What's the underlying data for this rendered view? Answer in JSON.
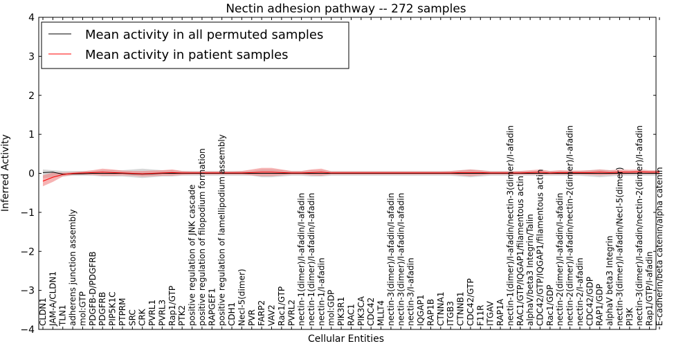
{
  "chart_data": {
    "type": "line",
    "title": "Nectin adhesion pathway -- 272 samples",
    "xlabel": "Cellular Entities",
    "ylabel": "Inferred Activity",
    "ylim": [
      -4,
      4
    ],
    "yticks": [
      -4,
      -3,
      -2,
      -1,
      0,
      1,
      2,
      3,
      4
    ],
    "ytick_labels": [
      "−4",
      "−3",
      "−2",
      "−1",
      "0",
      "1",
      "2",
      "3",
      "4"
    ],
    "grid": false,
    "legend_position": "top-left",
    "categories": [
      "CLDN1",
      "JAM-A/CLDN1",
      "TLN1",
      "adherens junction assembly",
      "mol:GTP",
      "PDGFB-D/PDGFRB",
      "PDGFRB",
      "PIP5K1C",
      "PTPRM",
      "SRC",
      "CRK",
      "PVRL1",
      "PVRL3",
      "Rap1/GTP",
      "PTK2",
      "positive regulation of JNK cascade",
      "positive regulation of filopodium formation",
      "RAPGEF1",
      "positive regulation of lamellipodium assembly",
      "CDH1",
      "Necl-5(dimer)",
      "PVR",
      "FARP2",
      "VAV2",
      "Rac1/GTP",
      "PVRL2",
      "nectin-1(dimer)/I-afadin/I-afadin",
      "nectin-1(dimer)/I-afadin/I-afadin",
      "nectin-1/I-afadin",
      "mol:GDP",
      "PIK3R1",
      "RAC1",
      "PIK3CA",
      "CDC42",
      "MLLT4",
      "nectin-3(dimer)/I-afadin/I-afadin",
      "nectin-3(dimer)/I-afadin/I-afadin",
      "nectin-3/I-afadin",
      "IQGAP1",
      "RAP1B",
      "CTNNA1",
      "ITGB3",
      "CTNNB1",
      "CDC42/GTP",
      "F11R",
      "ITGAV",
      "RAP1A",
      "nectin-1(dimer)/I-afadin/nectin-3(dimer)/I-afadin",
      "RAC1/GTP/IQGAP1/filamentous actin",
      "alphaV/beta3 Integrin/Talin",
      "CDC42/GTP/IQGAP1/filamentous actin",
      "Rac1/GDP",
      "nectin-2(dimer)/I-afadin/I-afadin",
      "nectin-2(dimer)/I-afadin/nectin-2(dimer)/I-afadin",
      "nectin-2/I-afadin",
      "CDC42/GDP",
      "RAP1/GDP",
      "alphaV beta3 Integrin",
      "nectin-3(dimer)/I-afadin/Necl-5(dimer)",
      "PI3K",
      "nectin-3(dimer)/I-afadin/nectin-2(dimer)/I-afadin",
      "Rap1/GTP/I-afadin",
      "E-cadherin/beta catenin/alpha catenin"
    ],
    "series": [
      {
        "name": "Mean activity in all permuted samples",
        "color": "#000000",
        "band_color": "#b0b0b0",
        "values": [
          0.02,
          0.03,
          -0.02,
          -0.01,
          -0.01,
          0,
          0,
          0,
          0,
          -0.01,
          -0.02,
          -0.01,
          0,
          0,
          0,
          0,
          0,
          0,
          0,
          0,
          0,
          0,
          0,
          0,
          0,
          0,
          0,
          0,
          0,
          0,
          0,
          0,
          0,
          0,
          0,
          0,
          0,
          0,
          0,
          0,
          0,
          0,
          0,
          0,
          0,
          0,
          0,
          0,
          0,
          0,
          0,
          0,
          0,
          0,
          0,
          0,
          0,
          0,
          0,
          0,
          0,
          0,
          0
        ],
        "band_lower": [
          -0.12,
          -0.1,
          -0.08,
          -0.06,
          -0.06,
          -0.06,
          -0.08,
          -0.08,
          -0.08,
          -0.1,
          -0.12,
          -0.1,
          -0.08,
          -0.08,
          -0.06,
          -0.06,
          -0.06,
          -0.06,
          -0.06,
          -0.06,
          -0.06,
          -0.06,
          -0.1,
          -0.1,
          -0.08,
          -0.06,
          -0.06,
          -0.08,
          -0.08,
          -0.06,
          -0.06,
          -0.06,
          -0.06,
          -0.06,
          -0.06,
          -0.06,
          -0.06,
          -0.06,
          -0.06,
          -0.06,
          -0.06,
          -0.06,
          -0.08,
          -0.1,
          -0.08,
          -0.06,
          -0.06,
          -0.06,
          -0.06,
          -0.06,
          -0.06,
          -0.06,
          -0.06,
          -0.06,
          -0.06,
          -0.08,
          -0.1,
          -0.08,
          -0.06,
          -0.06,
          -0.06,
          -0.06,
          -0.06
        ],
        "band_upper": [
          0.1,
          0.08,
          0.06,
          0.06,
          0.06,
          0.06,
          0.08,
          0.08,
          0.08,
          0.1,
          0.12,
          0.1,
          0.08,
          0.08,
          0.06,
          0.06,
          0.06,
          0.06,
          0.06,
          0.06,
          0.06,
          0.06,
          0.1,
          0.1,
          0.08,
          0.06,
          0.06,
          0.08,
          0.08,
          0.06,
          0.06,
          0.06,
          0.06,
          0.06,
          0.06,
          0.06,
          0.06,
          0.06,
          0.06,
          0.06,
          0.06,
          0.06,
          0.08,
          0.1,
          0.08,
          0.06,
          0.06,
          0.06,
          0.06,
          0.06,
          0.06,
          0.06,
          0.06,
          0.06,
          0.06,
          0.08,
          0.1,
          0.08,
          0.06,
          0.06,
          0.06,
          0.06,
          0.06
        ]
      },
      {
        "name": "Mean activity in patient samples",
        "color": "#ff0000",
        "band_color": "#f08080",
        "values": [
          -0.2,
          -0.1,
          -0.03,
          0,
          0.01,
          0.02,
          0.03,
          0.02,
          0.01,
          0,
          -0.01,
          0,
          0.01,
          0.02,
          0.01,
          0.01,
          0.01,
          0.01,
          0.01,
          0.01,
          0.01,
          0.02,
          0.03,
          0.03,
          0.02,
          0.01,
          0.01,
          0.02,
          0.03,
          0.01,
          0.01,
          0.01,
          0.01,
          0.01,
          0.01,
          0.01,
          0.01,
          0.01,
          0.01,
          0.01,
          0.01,
          0.01,
          0.02,
          0.02,
          0.02,
          0.01,
          0.01,
          0.01,
          0.01,
          0.02,
          0.03,
          0.01,
          0.02,
          0.02,
          0.02,
          0.02,
          0.03,
          0.02,
          0.03,
          0.03,
          0.04,
          0.03,
          0.03
        ],
        "band_lower": [
          -0.33,
          -0.22,
          -0.08,
          -0.04,
          -0.03,
          -0.04,
          -0.06,
          -0.06,
          -0.05,
          -0.06,
          -0.08,
          -0.07,
          -0.06,
          -0.06,
          -0.04,
          -0.03,
          -0.03,
          -0.03,
          -0.03,
          -0.03,
          -0.03,
          -0.05,
          -0.07,
          -0.07,
          -0.05,
          -0.03,
          -0.03,
          -0.05,
          -0.06,
          -0.03,
          -0.03,
          -0.03,
          -0.03,
          -0.03,
          -0.03,
          -0.03,
          -0.03,
          -0.03,
          -0.03,
          -0.03,
          -0.03,
          -0.03,
          -0.05,
          -0.07,
          -0.05,
          -0.03,
          -0.03,
          -0.03,
          -0.03,
          -0.03,
          -0.03,
          -0.03,
          -0.03,
          -0.03,
          -0.03,
          -0.04,
          -0.05,
          -0.04,
          -0.03,
          -0.02,
          -0.02,
          -0.02,
          -0.02
        ],
        "band_upper": [
          -0.05,
          0.02,
          0.02,
          0.03,
          0.05,
          0.08,
          0.12,
          0.1,
          0.07,
          0.06,
          0.06,
          0.07,
          0.08,
          0.1,
          0.06,
          0.05,
          0.05,
          0.05,
          0.05,
          0.05,
          0.06,
          0.1,
          0.14,
          0.14,
          0.1,
          0.06,
          0.06,
          0.1,
          0.12,
          0.05,
          0.05,
          0.05,
          0.05,
          0.05,
          0.05,
          0.05,
          0.05,
          0.05,
          0.05,
          0.05,
          0.05,
          0.06,
          0.08,
          0.1,
          0.08,
          0.05,
          0.05,
          0.05,
          0.06,
          0.08,
          0.1,
          0.06,
          0.08,
          0.07,
          0.07,
          0.08,
          0.1,
          0.08,
          0.1,
          0.09,
          0.1,
          0.08,
          0.08
        ]
      }
    ]
  }
}
